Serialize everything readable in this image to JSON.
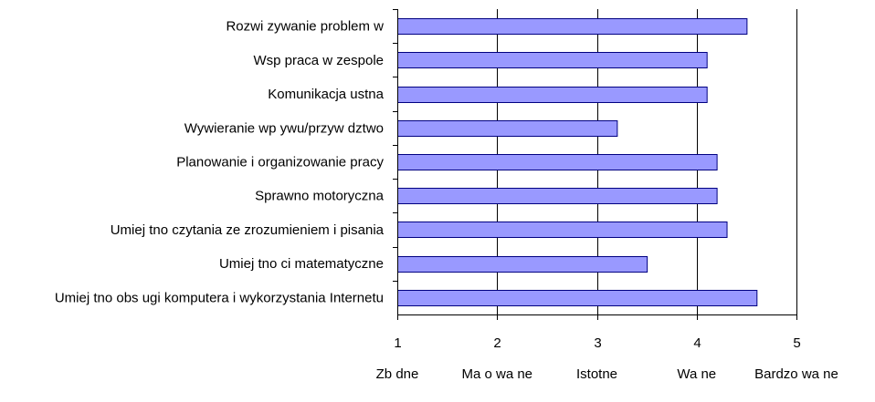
{
  "chart_data": {
    "type": "bar",
    "orientation": "horizontal",
    "categories": [
      "Rozwi zywanie problem w",
      "Wsp praca w zespole",
      "Komunikacja ustna",
      "Wywieranie wp ywu/przyw dztwo",
      "Planowanie i organizowanie pracy",
      "Sprawno motoryczna",
      "Umiej tno czytania ze zrozumieniem i pisania",
      "Umiej tno ci matematyczne",
      "Umiej tno obs ugi komputera i wykorzystania Internetu"
    ],
    "values": [
      4.5,
      4.1,
      4.1,
      3.2,
      4.2,
      4.2,
      4.3,
      3.5,
      4.6
    ],
    "xlim": [
      1,
      5
    ],
    "xticks": [
      "1",
      "2",
      "3",
      "4",
      "5"
    ],
    "scale_labels": [
      "Zb dne",
      "Ma o wa ne",
      "Istotne",
      "Wa ne",
      "Bardzo wa ne"
    ],
    "grid": "vertical",
    "colors": {
      "bar_fill": "#9999ff",
      "bar_stroke": "#000080",
      "axis": "#000000",
      "grid": "#000000"
    },
    "title": "",
    "xlabel": "",
    "ylabel": ""
  }
}
